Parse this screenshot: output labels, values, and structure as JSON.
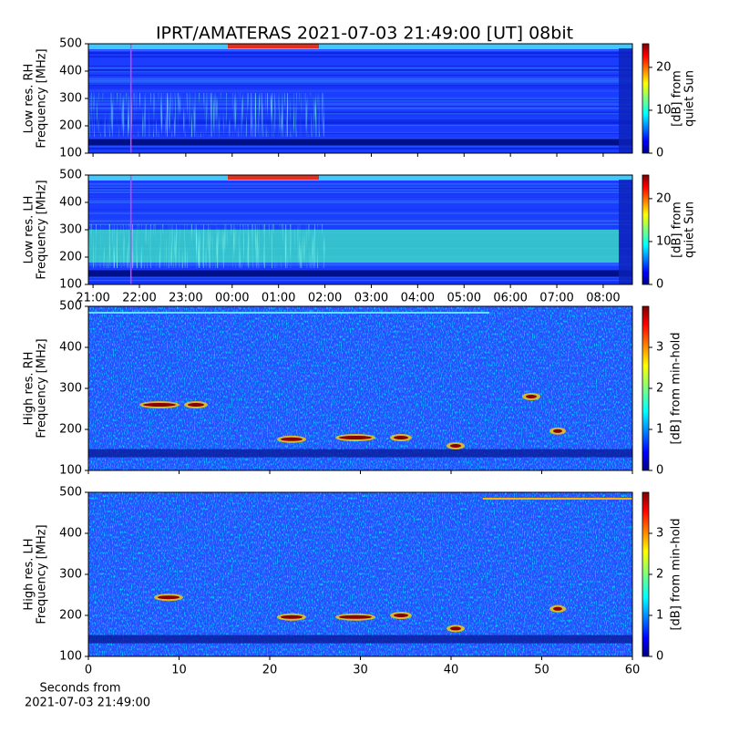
{
  "title": "IPRT/AMATERAS 2021-07-03 21:49:00 [UT]   08bit",
  "chart_data": [
    {
      "type": "spectrogram",
      "ylabel": [
        "Low res. RH",
        "Frequency [MHz]"
      ],
      "ylim": [
        100,
        500
      ],
      "yticks": [
        100,
        200,
        300,
        400,
        500
      ],
      "xlim": [
        -0.1,
        11.63
      ],
      "xticks": [
        0,
        1,
        2,
        3,
        4,
        5,
        6,
        7,
        8,
        9,
        10,
        11
      ],
      "marker_x": 0.817,
      "marker_color": "#e040e0",
      "colorbar_label": [
        "[dB] from",
        "quiet Sun"
      ],
      "clim": [
        0,
        25.5
      ],
      "cticks": [
        0,
        10,
        20
      ]
    },
    {
      "type": "spectrogram",
      "ylabel": [
        "Low res. LH",
        "Frequency [MHz]"
      ],
      "ylim": [
        100,
        500
      ],
      "yticks": [
        100,
        200,
        300,
        400,
        500
      ],
      "xlim": [
        -0.1,
        11.63
      ],
      "xticks": [
        {
          "value": 0,
          "label": "21:00"
        },
        {
          "value": 1,
          "label": "22:00"
        },
        {
          "value": 2,
          "label": "23:00"
        },
        {
          "value": 3,
          "label": "00:00"
        },
        {
          "value": 4,
          "label": "01:00"
        },
        {
          "value": 5,
          "label": "02:00"
        },
        {
          "value": 6,
          "label": "03:00"
        },
        {
          "value": 7,
          "label": "04:00"
        },
        {
          "value": 8,
          "label": "05:00"
        },
        {
          "value": 9,
          "label": "06:00"
        },
        {
          "value": 10,
          "label": "07:00"
        },
        {
          "value": 11,
          "label": "08:00"
        }
      ],
      "marker_x": 0.817,
      "marker_color": "#e040e0",
      "colorbar_label": [
        "[dB] from",
        "quiet Sun"
      ],
      "clim": [
        0,
        25.5
      ],
      "cticks": [
        0,
        10,
        20
      ]
    },
    {
      "type": "spectrogram",
      "ylabel": [
        "High res. RH",
        "Frequency [MHz]"
      ],
      "ylim": [
        100,
        500
      ],
      "yticks": [
        100,
        200,
        300,
        400,
        500
      ],
      "xlim": [
        0,
        60
      ],
      "xticks": [
        0,
        10,
        20,
        30,
        40,
        50,
        60
      ],
      "xticklabels": false,
      "colorbar_label": [
        "[dB] from min-hold"
      ],
      "clim": [
        0,
        4
      ],
      "cticks": [
        0,
        1,
        2,
        3
      ]
    },
    {
      "type": "spectrogram",
      "ylabel": [
        "High res. LH",
        "Frequency [MHz]"
      ],
      "ylim": [
        100,
        500
      ],
      "yticks": [
        100,
        200,
        300,
        400,
        500
      ],
      "xlim": [
        0,
        60
      ],
      "xticks": [
        0,
        10,
        20,
        30,
        40,
        50,
        60
      ],
      "xticklabels": true,
      "xlabel": [
        "Seconds from",
        "2021-07-03 21:49:00"
      ],
      "colorbar_label": [
        "[dB] from min-hold"
      ],
      "clim": [
        0,
        4
      ],
      "cticks": [
        0,
        1,
        2,
        3
      ]
    }
  ]
}
